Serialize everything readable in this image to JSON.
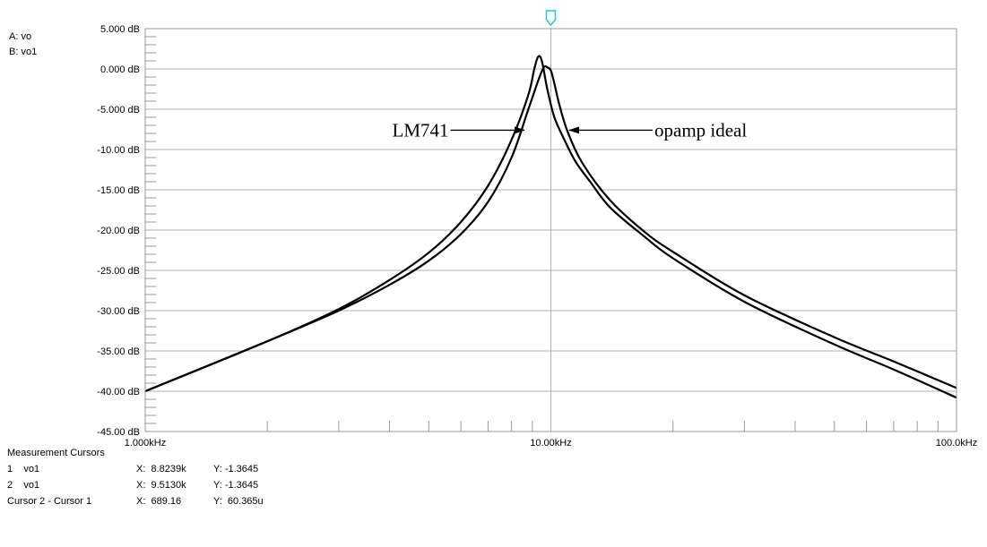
{
  "traces": [
    "A: vo",
    "B: vo1"
  ],
  "chart_data": {
    "type": "line",
    "x_scale": "log",
    "xlim": [
      1000,
      100000
    ],
    "ylim": [
      -45,
      5
    ],
    "y_ticks": [
      5,
      0,
      -5,
      -10,
      -15,
      -20,
      -25,
      -30,
      -35,
      -40,
      -45
    ],
    "y_tick_labels": [
      "5.000 dB",
      "0.000 dB",
      "-5.000 dB",
      "-10.00 dB",
      "-15.00 dB",
      "-20.00 dB",
      "-25.00 dB",
      "-30.00 dB",
      "-35.00 dB",
      "-40.00 dB",
      "-45.00 dB"
    ],
    "x_ticks": [
      1000,
      10000,
      100000
    ],
    "x_tick_labels": [
      "1.000kHz",
      "10.00kHz",
      "100.0kHz"
    ],
    "cursor_x": 10000,
    "series": [
      {
        "name": "vo",
        "x": [
          1000,
          2000,
          3000,
          4000,
          5000,
          6000,
          7000,
          8000,
          8800,
          9300,
          9600,
          9800,
          10000,
          10200,
          10500,
          11000,
          12000,
          14000,
          17000,
          20000,
          30000,
          50000,
          70000,
          100000
        ],
        "y": [
          -40,
          -33.8,
          -30,
          -26.8,
          -23.8,
          -20.5,
          -16.5,
          -11,
          -5,
          -1.5,
          0.2,
          0.2,
          -0.2,
          -1.8,
          -4.5,
          -7.8,
          -11.8,
          -16.3,
          -20.2,
          -22.7,
          -28.1,
          -33.3,
          -36.3,
          -39.6
        ]
      },
      {
        "name": "vo1",
        "x": [
          1000,
          2000,
          3000,
          4000,
          5000,
          6000,
          7000,
          8000,
          8800,
          9100,
          9300,
          9500,
          9800,
          10200,
          10800,
          11500,
          12500,
          14000,
          17000,
          20000,
          30000,
          50000,
          70000,
          100000
        ],
        "y": [
          -40,
          -33.8,
          -29.8,
          -26.2,
          -22.8,
          -19,
          -14.5,
          -8.8,
          -3.2,
          0,
          1.5,
          1,
          -2.5,
          -6,
          -8.8,
          -11.5,
          -14,
          -17.2,
          -20.8,
          -23.5,
          -28.9,
          -34.2,
          -37.3,
          -40.8
        ]
      }
    ],
    "annotations": [
      {
        "text": "LM741",
        "x": 5600,
        "y": -7.6,
        "arrow_to_x": 8600,
        "arrow_to_y": -7.6
      },
      {
        "text": "opamp ideal",
        "x": 18000,
        "y": -7.6,
        "arrow_to_x": 11100,
        "arrow_to_y": -7.6
      }
    ]
  },
  "measurement": {
    "title": "Measurement Cursors",
    "rows": [
      {
        "name": "1    vo1",
        "x": "X:  8.8239k",
        "y": "Y: -1.3645"
      },
      {
        "name": "2    vo1",
        "x": "X:  9.5130k",
        "y": "Y: -1.3645"
      },
      {
        "name": "Cursor 2 - Cursor 1",
        "x": "X:  689.16",
        "y": "Y:  60.365u"
      }
    ]
  }
}
